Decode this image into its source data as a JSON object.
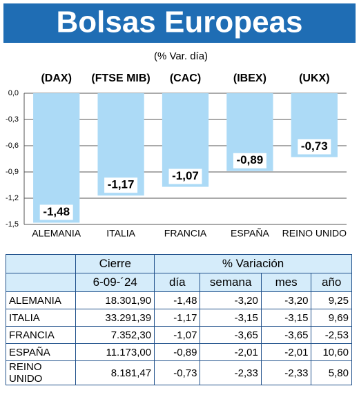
{
  "chart_data": {
    "type": "bar",
    "title": "Bolsas Europeas",
    "subtitle": "(% Var. día)",
    "index_labels": [
      "(DAX)",
      "(FTSE MIB)",
      "(CAC)",
      "(IBEX)",
      "(UKX)"
    ],
    "categories": [
      "ALEMANIA",
      "ITALIA",
      "FRANCIA",
      "ESPAÑA",
      "REINO UNIDO"
    ],
    "values": [
      -1.48,
      -1.17,
      -1.07,
      -0.89,
      -0.73
    ],
    "value_labels": [
      "-1,48",
      "-1,17",
      "-1,07",
      "-0,89",
      "-0,73"
    ],
    "color": "#acdaf6",
    "ylim": [
      -1.5,
      0
    ],
    "yticks": [
      {
        "value": 0,
        "label": "0,0"
      },
      {
        "value": -0.3,
        "label": "-0,3"
      },
      {
        "value": -0.6,
        "label": "-0,6"
      },
      {
        "value": -0.9,
        "label": "-0,9"
      },
      {
        "value": -1.2,
        "label": "-1,2"
      },
      {
        "value": -1.5,
        "label": "-1,5"
      }
    ],
    "grid": true
  },
  "table": {
    "header": [
      "Cierre",
      "% Variación"
    ],
    "subheader": [
      "6-09-´24",
      "día",
      "semana",
      "mes",
      "año"
    ],
    "rows": [
      [
        "ALEMANIA",
        "18.301,90",
        "-1,48",
        "-3,20",
        "-3,20",
        "9,25"
      ],
      [
        "ITALIA",
        "33.291,39",
        "-1,17",
        "-3,15",
        "-3,15",
        "9,69"
      ],
      [
        "FRANCIA",
        "7.352,30",
        "-1,07",
        "-3,65",
        "-3,65",
        "-2,53"
      ],
      [
        "ESPAÑA",
        "11.173,00",
        "-0,89",
        "-2,01",
        "-2,01",
        "10,60"
      ],
      [
        "REINO UNIDO",
        "8.181,47",
        "-0,73",
        "-2,33",
        "-2,33",
        "5,80"
      ]
    ]
  }
}
